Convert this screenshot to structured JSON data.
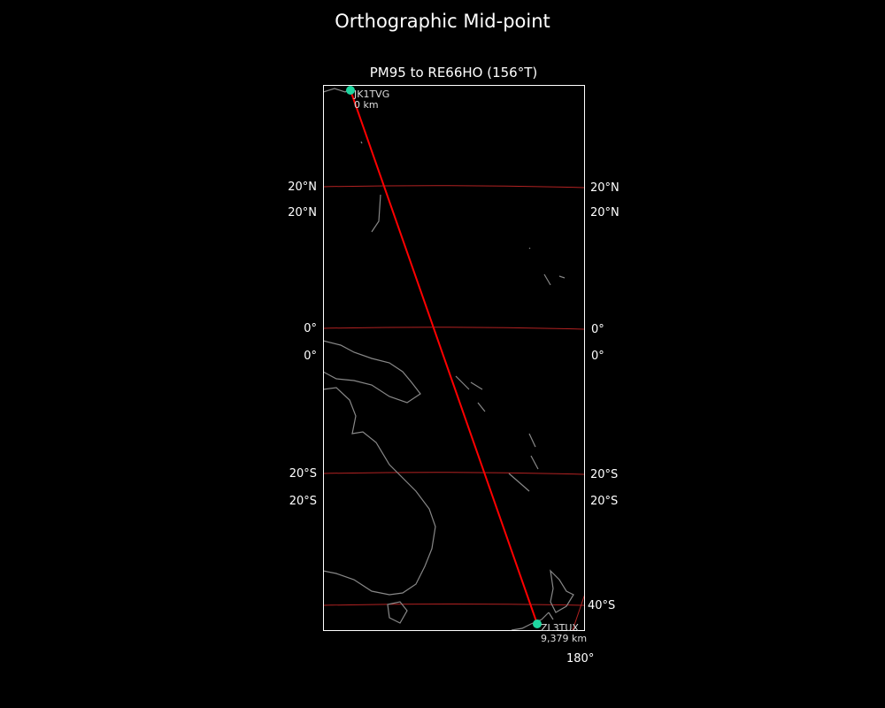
{
  "figure_title": "Orthographic Mid-point",
  "map_title": "PM95 to RE66HO (156°T)",
  "colors": {
    "background": "#000000",
    "path": "#ff0000",
    "graticule": "#b22222",
    "coastline": "#888888",
    "station": "#1fd6a0",
    "frame": "#ffffff"
  },
  "projection": "orthographic",
  "graticule_labels": {
    "left": [
      "20°N",
      "20°N",
      "0°",
      "0°",
      "20°S",
      "20°S"
    ],
    "right": [
      "20°N",
      "20°N",
      "0°",
      "0°",
      "20°S",
      "20°S",
      "40°S"
    ],
    "bottom": [
      "180°"
    ]
  },
  "stations": [
    {
      "call": "JK1TVG",
      "distance": "0 km"
    },
    {
      "call": "ZL3TUX",
      "distance": "9,379 km"
    }
  ]
}
